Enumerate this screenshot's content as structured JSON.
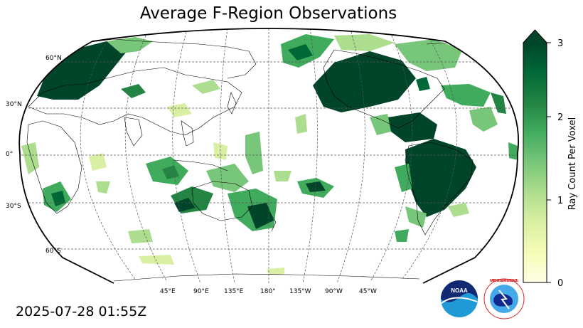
{
  "title": "Average F-Region Observations",
  "timestamp": "2025-07-28 01:55Z",
  "map": {
    "projection": "Robinson (Pacific-centered)",
    "lat_labels": [
      "60°N",
      "30°N",
      "0°",
      "30°S",
      "60°S"
    ],
    "lon_labels": [
      "45°E",
      "90°E",
      "135°E",
      "180°",
      "135°W",
      "90°W",
      "45°W"
    ]
  },
  "colorbar": {
    "label": "Ray Count Per Voxel",
    "ticks": [
      "0",
      "1",
      "2",
      "3"
    ],
    "range": [
      0,
      3
    ],
    "extend": "max",
    "colormap": "YlGn",
    "colors": [
      "#ffffe5",
      "#f7fcb9",
      "#d9f0a3",
      "#addd8e",
      "#78c679",
      "#41ab5d",
      "#238443",
      "#006837",
      "#004529"
    ]
  },
  "logos": {
    "noaa": "NOAA",
    "nws": "NATIONAL WEATHER SERVICE"
  }
}
